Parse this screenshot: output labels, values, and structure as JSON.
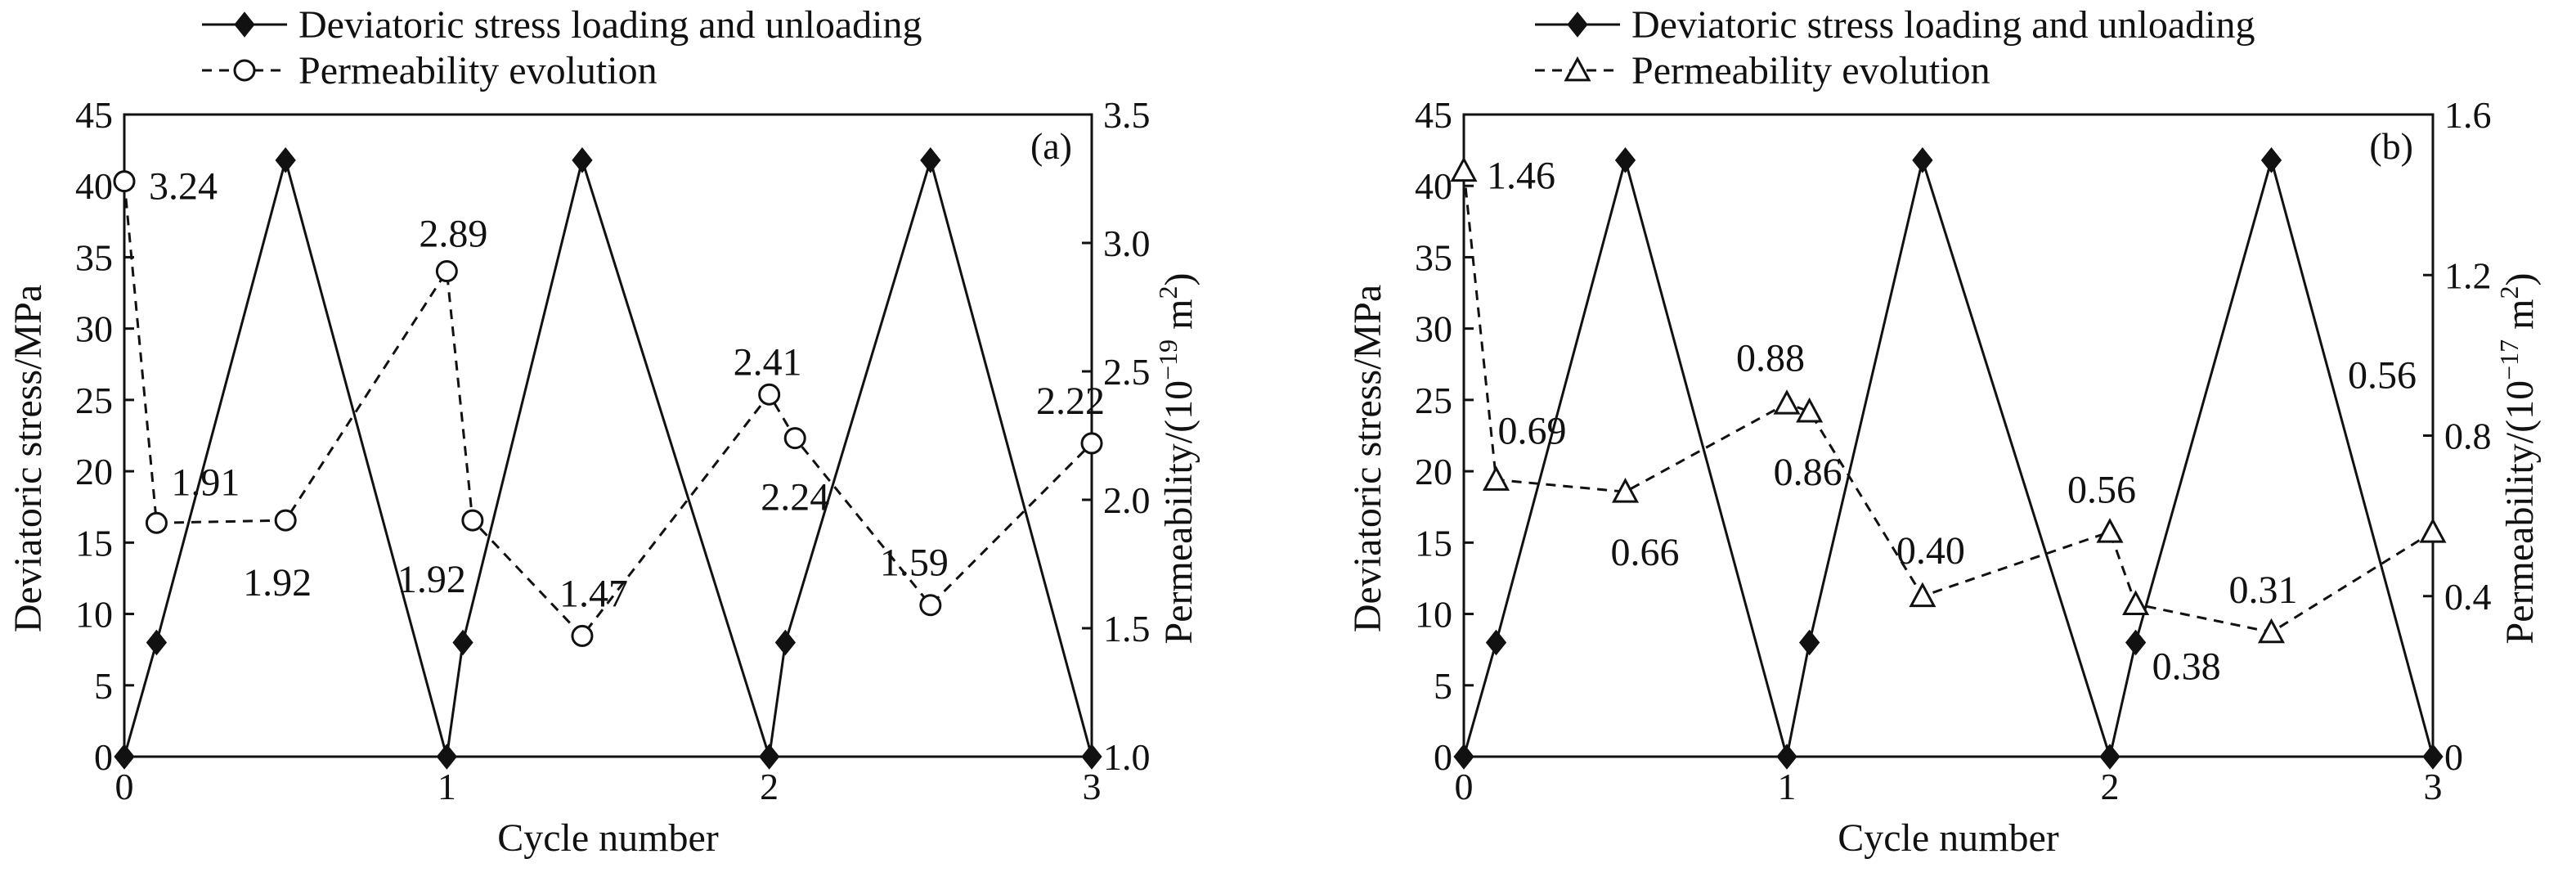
{
  "chart_data": [
    {
      "type": "line",
      "panel_label": "(a)",
      "xlabel": "Cycle number",
      "ylabel": "Deviatoric stress/MPa",
      "y2label_prefix": "Permeability/(10",
      "y2label_exp": "−19",
      "y2label_unit": " m",
      "y2label_sup": "2",
      "y2label_suffix": ")",
      "xlim": [
        0,
        3
      ],
      "xticks": [
        "0",
        "1",
        "2",
        "3"
      ],
      "ylim": [
        0,
        45
      ],
      "yticks": [
        "0",
        "5",
        "10",
        "15",
        "20",
        "25",
        "30",
        "35",
        "40",
        "45"
      ],
      "y2lim": [
        1.0,
        3.5
      ],
      "y2ticks": [
        "1.0",
        "1.5",
        "2.0",
        "2.5",
        "3.0",
        "3.5"
      ],
      "legend_placement": "top-left",
      "series": [
        {
          "name": "Deviatoric stress loading and unloading",
          "axis": "left",
          "marker": "diamond",
          "line": "solid",
          "x": [
            0,
            0.1,
            0.5,
            1.0,
            1.05,
            1.42,
            2.0,
            2.05,
            2.5,
            3.0
          ],
          "y": [
            0,
            8,
            41.8,
            0,
            8,
            41.8,
            0,
            8,
            41.8,
            0
          ]
        },
        {
          "name": "Permeability evolution",
          "axis": "right",
          "marker": "circle",
          "line": "dashed",
          "x": [
            0,
            0.1,
            0.5,
            1.0,
            1.08,
            1.42,
            2.0,
            2.08,
            2.5,
            3.0
          ],
          "y": [
            3.24,
            1.91,
            1.92,
            2.89,
            1.92,
            1.47,
            2.41,
            2.24,
            1.59,
            2.22
          ],
          "labels": [
            "3.24",
            "1.91",
            "1.92",
            "2.89",
            "1.92",
            "1.47",
            "2.41",
            "2.24",
            "1.59",
            "2.22"
          ]
        }
      ]
    },
    {
      "type": "line",
      "panel_label": "(b)",
      "xlabel": "Cycle number",
      "ylabel": "Deviatoric stress/MPa",
      "y2label_prefix": "Permeability/(10",
      "y2label_exp": "−17",
      "y2label_unit": " m",
      "y2label_sup": "2",
      "y2label_suffix": ")",
      "xlim": [
        0,
        3
      ],
      "xticks": [
        "0",
        "1",
        "2",
        "3"
      ],
      "ylim": [
        0,
        45
      ],
      "yticks": [
        "0",
        "5",
        "10",
        "15",
        "20",
        "25",
        "30",
        "35",
        "40",
        "45"
      ],
      "y2lim": [
        0,
        1.6
      ],
      "y2ticks": [
        "0",
        "0.4",
        "0.8",
        "1.2",
        "1.6"
      ],
      "legend_placement": "top-left",
      "series": [
        {
          "name": "Deviatoric stress loading and unloading",
          "axis": "left",
          "marker": "diamond",
          "line": "solid",
          "x": [
            0,
            0.1,
            0.5,
            1.0,
            1.07,
            1.42,
            2.0,
            2.08,
            2.5,
            3.0
          ],
          "y": [
            0,
            8,
            41.8,
            0,
            8,
            41.8,
            0,
            8,
            41.8,
            0
          ]
        },
        {
          "name": "Permeability evolution",
          "axis": "right",
          "marker": "triangle",
          "line": "dashed",
          "x": [
            0,
            0.1,
            0.5,
            1.0,
            1.07,
            1.42,
            2.0,
            2.08,
            2.5,
            3.0
          ],
          "y": [
            1.46,
            0.69,
            0.66,
            0.88,
            0.86,
            0.4,
            0.56,
            0.38,
            0.31,
            0.56
          ],
          "labels": [
            "1.46",
            "0.69",
            "0.66",
            "0.88",
            "0.86",
            "0.40",
            "0.56",
            "0.38",
            "0.31",
            "0.56"
          ]
        }
      ]
    }
  ]
}
